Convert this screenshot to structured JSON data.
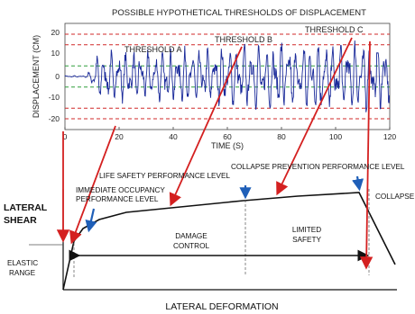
{
  "top_chart": {
    "title": "POSSIBLE HYPOTHETICAL THRESHOLDS OF DISPLACEMENT",
    "ylabel": "DISPLACEMENT (CM)",
    "xlabel": "TIME (S)",
    "x_ticks": [
      "0",
      "20",
      "40",
      "60",
      "80",
      "100",
      "120"
    ],
    "y_ticks": [
      "20",
      "10",
      "0",
      "-10",
      "-20"
    ],
    "thresholds": [
      {
        "label": "THRESHOLD  A",
        "value": 5,
        "color": "#2e9e3a"
      },
      {
        "label": "THRESHOLD  B",
        "value": 15,
        "color": "#d02828"
      },
      {
        "label": "THRESHOLD  C",
        "value": 20,
        "color": "#d02828"
      }
    ],
    "signal_color": "#1a2a9a"
  },
  "bottom_diagram": {
    "y_axis_label_line1": "LATERAL",
    "y_axis_label_line2": "SHEAR",
    "x_axis_label": "LATERAL DEFORMATION",
    "performance_levels": {
      "immediate_occupancy_line1": "IMMEDIATE OCCUPANCY",
      "immediate_occupancy_line2": "PERFORMANCE LEVEL",
      "life_safety": "LIFE SAFETY PERFORMANCE LEVEL",
      "collapse_prevention": "COLLAPSE PREVENTION PERFORMANCE LEVEL",
      "collapse": "COLLAPSE"
    },
    "ranges": {
      "elastic_line1": "ELASTIC",
      "elastic_line2": "RANGE",
      "damage_control_line1": "DAMAGE",
      "damage_control_line2": "CONTROL",
      "limited_safety_line1": "LIMITED",
      "limited_safety_line2": "SAFETY"
    },
    "marker_color": "#1f5fb8",
    "arrow_color": "#d42020"
  }
}
